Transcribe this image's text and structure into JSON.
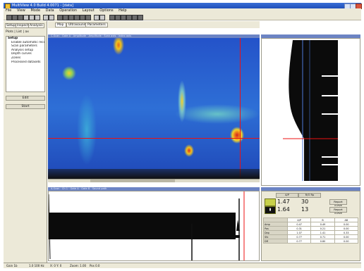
{
  "window": {
    "title": "MultiView 4.0 Build 4.0071 - [data]"
  },
  "menu": [
    "File",
    "View",
    "Mode",
    "Data",
    "Operation",
    "Layout",
    "Options",
    "Help"
  ],
  "left_panel": {
    "tabs": [
      "Setup",
      "Inspect",
      "Analysis"
    ],
    "header": "Plots  |  List  |  ax",
    "tree": [
      "Setup",
      "Enable automatic record",
      "Scan parameters",
      "Analysis setup",
      "Depth curves",
      "Zones",
      "Processed datasets"
    ],
    "buttons": [
      "Edit",
      "Start"
    ]
  },
  "image_panel": {
    "tabs": [
      "Map",
      "Ultrasound",
      "Parameters"
    ],
    "header": "C-Scan · Gate A · Amplitude · Amplitude · Scan axis · Index axis"
  },
  "profile_panel": {
    "header": ""
  },
  "wave_panel": {
    "header": "A-Scan · Ch 1 · Gate A · Gate B · Sound path"
  },
  "info_panel": {
    "headers": [
      "A/P",
      "R/O  Rp"
    ],
    "row1": {
      "value": "1.47",
      "count": "30",
      "button": "Report curve"
    },
    "row2": {
      "value": "1.64",
      "count": "13",
      "button": "Report curve"
    },
    "table_header": [
      "",
      "A/P",
      "B",
      "AB"
    ],
    "rows": [
      {
        "label": "Amp",
        "cells": [
          "0.47",
          "0.49",
          "0.00"
        ]
      },
      {
        "label": "Pos",
        "cells": [
          "0.31",
          "0.21",
          "0.00"
        ]
      },
      {
        "label": "Dep",
        "cells": [
          "1.07",
          "1.41",
          "0.33"
        ]
      },
      {
        "label": "Sfx",
        "cells": [
          "0.77",
          "0.71",
          "0.00"
        ]
      },
      {
        "label": "Dff",
        "cells": [
          "0.77",
          "0.80",
          "0.00"
        ]
      }
    ]
  },
  "status": {
    "items": [
      "Gain 1b",
      "1.0  100 Hz",
      "X: 0  Y: 0",
      "Zoom: 1.00",
      "Pos 0.0"
    ]
  }
}
